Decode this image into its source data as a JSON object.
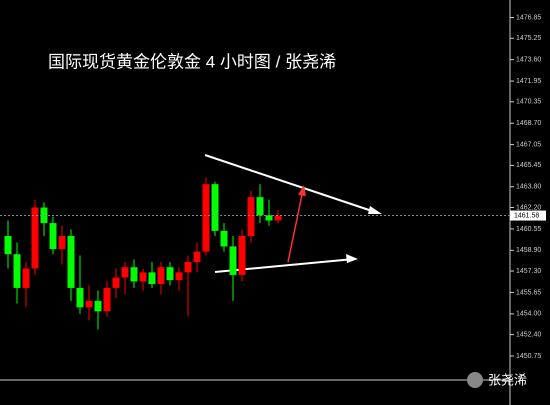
{
  "chart_data": {
    "type": "candlestick",
    "title": "国际现货黄金伦敦金 4 小时图 / 张尧浠",
    "watermark": "张尧浠",
    "up_color": "#ff0000",
    "down_color": "#00ff00",
    "open": [
      1460.0,
      1458.6,
      1456.0,
      1457.5,
      1462.2,
      1461.0,
      1459.0,
      1460.0,
      1456.0,
      1454.5,
      1455.0,
      1454.2,
      1456.0,
      1456.8,
      1457.6,
      1456.5,
      1457.2,
      1456.3,
      1457.6,
      1456.6,
      1457.2,
      1458.0,
      1458.8,
      1464.0,
      1460.4,
      1459.2,
      1457.0,
      1460.0,
      1463.0,
      1461.6,
      1461.2
    ],
    "high": [
      1461.2,
      1459.5,
      1458.0,
      1462.8,
      1462.6,
      1461.5,
      1460.8,
      1460.5,
      1458.5,
      1456.2,
      1455.8,
      1456.5,
      1457.5,
      1458.0,
      1458.2,
      1457.5,
      1458.0,
      1458.0,
      1458.0,
      1457.6,
      1458.5,
      1459.5,
      1464.5,
      1464.2,
      1461.0,
      1460.0,
      1460.5,
      1463.5,
      1464.0,
      1462.8,
      1462.0
    ],
    "low": [
      1457.5,
      1454.8,
      1454.5,
      1457.0,
      1460.0,
      1458.6,
      1457.8,
      1455.0,
      1454.0,
      1453.5,
      1452.8,
      1453.8,
      1455.2,
      1455.5,
      1456.0,
      1455.8,
      1456.0,
      1455.5,
      1456.2,
      1455.8,
      1453.8,
      1457.2,
      1458.5,
      1460.0,
      1458.8,
      1455.0,
      1456.5,
      1459.5,
      1461.0,
      1460.8,
      1461.0
    ],
    "close": [
      1458.6,
      1456.0,
      1457.5,
      1462.2,
      1461.0,
      1459.0,
      1460.0,
      1456.0,
      1454.5,
      1455.0,
      1454.2,
      1456.0,
      1456.8,
      1457.6,
      1456.5,
      1457.2,
      1456.3,
      1457.6,
      1456.6,
      1457.2,
      1458.0,
      1458.8,
      1464.0,
      1460.4,
      1459.2,
      1457.0,
      1460.0,
      1463.0,
      1461.6,
      1461.2,
      1461.58
    ],
    "last_price": 1461.58,
    "ylim": [
      1448.9,
      1478.2
    ],
    "yticks": [
      1476.85,
      1475.25,
      {
        "value": 1473.6,
        "label": "1473.60"
      },
      1471.95,
      1470.35,
      {
        "value": 1468.7,
        "label": "1468.70"
      },
      1467.05,
      1465.45,
      {
        "value": 1463.8,
        "label": "1463.80"
      },
      {
        "value": 1462.2,
        "label": "1462.20"
      },
      1460.55,
      {
        "value": 1458.9,
        "label": "1458.90"
      },
      {
        "value": 1457.3,
        "label": "1457.30"
      },
      1455.65,
      {
        "value": 1454.0,
        "label": "1454.00"
      },
      {
        "value": 1452.4,
        "label": "1452.40"
      },
      1450.75
    ]
  }
}
